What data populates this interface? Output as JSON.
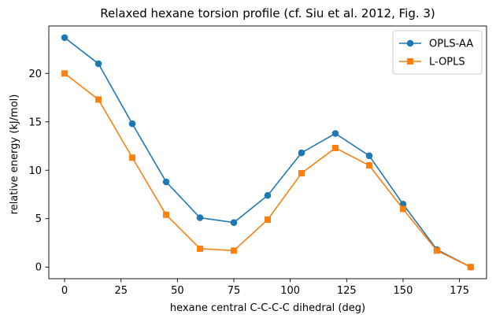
{
  "chart_data": {
    "type": "line",
    "title": "Relaxed hexane torsion profile (cf. Siu et al. 2012, Fig. 3)",
    "xlabel": "hexane central C-C-C-C dihedral (deg)",
    "ylabel": "relative energy (kJ/mol)",
    "xlim": [
      -7,
      187
    ],
    "ylim": [
      -1.2,
      24.9
    ],
    "xticks": [
      0,
      25,
      50,
      75,
      100,
      125,
      150,
      175
    ],
    "yticks": [
      0,
      5,
      10,
      15,
      20
    ],
    "grid": false,
    "legend_position": "top-right",
    "x": [
      0,
      15,
      30,
      45,
      60,
      75,
      90,
      105,
      120,
      135,
      150,
      165,
      180
    ],
    "series": [
      {
        "name": "OPLS-AA",
        "color": "#1f77b4",
        "marker": "circle",
        "values": [
          23.7,
          21.0,
          14.8,
          8.8,
          5.1,
          4.6,
          7.4,
          11.8,
          13.8,
          11.5,
          6.5,
          1.8,
          0.0
        ]
      },
      {
        "name": "L-OPLS",
        "color": "#ff7f0e",
        "marker": "square",
        "values": [
          20.0,
          17.3,
          11.3,
          5.4,
          1.9,
          1.7,
          4.9,
          9.7,
          12.3,
          10.5,
          6.0,
          1.7,
          0.0
        ]
      }
    ]
  }
}
